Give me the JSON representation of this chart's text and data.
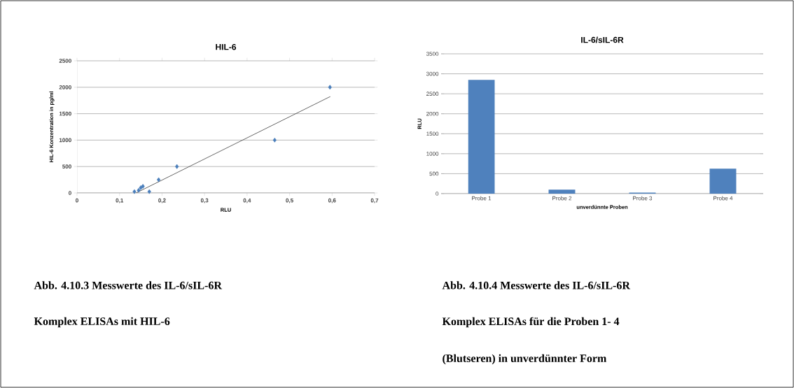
{
  "chart_data": [
    {
      "type": "scatter",
      "title": "HIL-6",
      "xlabel": "RLU",
      "ylabel": "HIL-6 Konzentration in pg/ml",
      "xlim": [
        0,
        0.7
      ],
      "xticks": [
        0,
        {
          "value": 0.1,
          "label": "0,1"
        },
        {
          "value": 0.2,
          "label": "0,2"
        },
        {
          "value": 0.3,
          "label": "0,3"
        },
        {
          "value": 0.4,
          "label": "0,4"
        },
        {
          "value": 0.5,
          "label": "0,5"
        },
        {
          "value": 0.6,
          "label": "0,6"
        },
        {
          "value": 0.7,
          "label": "0,7"
        }
      ],
      "ylim": [
        0,
        2500
      ],
      "yticks": [
        0,
        500,
        1000,
        1500,
        2000,
        2500
      ],
      "grid": "y",
      "series": [
        {
          "type": "scatter",
          "marker": "diamond",
          "color": "#4a7ebb",
          "x": [
            0.135,
            0.145,
            0.15,
            0.155,
            0.17,
            0.192,
            0.235,
            0.465,
            0.595
          ],
          "values": [
            25,
            50,
            100,
            125,
            25,
            250,
            500,
            1000,
            2000
          ]
        },
        {
          "type": "line",
          "marker": "none",
          "color": "#404040",
          "x": [
            0.139,
            0.596
          ],
          "values": [
            0,
            1825
          ]
        }
      ],
      "annotations": [
        "Abb. 4.10.3 Messwerte des IL-6/sIL-6R",
        "Komplex ELISAs mit HIL-6"
      ]
    },
    {
      "type": "bar",
      "title": "IL-6/sIL-6R",
      "xlabel": "unverdünnte Proben",
      "ylabel": "RLU",
      "categories": [
        "Probe 1",
        "Probe 2",
        "Probe 3",
        "Probe 4"
      ],
      "values": [
        2850,
        100,
        25,
        625
      ],
      "color": "#4f81bd",
      "ylim": [
        0,
        3500
      ],
      "yticks": [
        0,
        500,
        1000,
        1500,
        2000,
        2500,
        3000,
        3500
      ],
      "grid": "y",
      "annotations": [
        "Abb. 4.10.4 Messwerte des IL-6/sIL-6R",
        "Komplex ELISAs für die Proben 1- 4",
        "(Blutseren) in unverdünnter Form"
      ]
    }
  ]
}
